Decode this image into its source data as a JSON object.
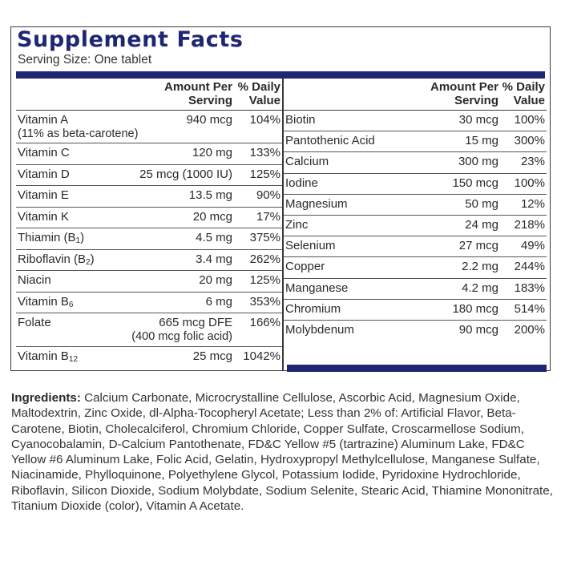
{
  "title": "Supplement Facts",
  "serving_size": "Serving Size: One tablet",
  "headers": {
    "amount_line1": "Amount Per",
    "amount_line2": "Serving",
    "dv_line1": "% Daily",
    "dv_line2": "Value"
  },
  "left_rows": [
    {
      "name": "Vitamin A",
      "sub": "(11% as beta-carotene)",
      "amount": "940 mcg",
      "amount2": "",
      "dv": "104%"
    },
    {
      "name": "Vitamin C",
      "sub": "",
      "amount": "120 mg",
      "amount2": "",
      "dv": "133%"
    },
    {
      "name": "Vitamin D",
      "sub": "",
      "amount": "25 mcg (1000 IU)",
      "amount2": "",
      "dv": "125%"
    },
    {
      "name": "Vitamin E",
      "sub": "",
      "amount": "13.5 mg",
      "amount2": "",
      "dv": "90%"
    },
    {
      "name": "Vitamin K",
      "sub": "",
      "amount": "20 mcg",
      "amount2": "",
      "dv": "17%"
    },
    {
      "name": "Thiamin (B",
      "subscript": "1",
      "suffix": ")",
      "sub": "",
      "amount": "4.5 mg",
      "amount2": "",
      "dv": "375%"
    },
    {
      "name": "Riboflavin (B",
      "subscript": "2",
      "suffix": ")",
      "sub": "",
      "amount": "3.4 mg",
      "amount2": "",
      "dv": "262%"
    },
    {
      "name": "Niacin",
      "sub": "",
      "amount": "20 mg",
      "amount2": "",
      "dv": "125%"
    },
    {
      "name": "Vitamin B",
      "subscript": "6",
      "suffix": "",
      "sub": "",
      "amount": "6 mg",
      "amount2": "",
      "dv": "353%"
    },
    {
      "name": "Folate",
      "sub": "",
      "amount": "665 mcg DFE",
      "amount2": "(400 mcg folic acid)",
      "dv": "166%"
    },
    {
      "name": "Vitamin B",
      "subscript": "12",
      "suffix": "",
      "sub": "",
      "amount": "25 mcg",
      "amount2": "",
      "dv": "1042%"
    }
  ],
  "right_rows": [
    {
      "name": "Biotin",
      "amount": "30 mcg",
      "dv": "100%"
    },
    {
      "name": "Pantothenic Acid",
      "amount": "15 mg",
      "dv": "300%"
    },
    {
      "name": "Calcium",
      "amount": "300 mg",
      "dv": "23%"
    },
    {
      "name": "Iodine",
      "amount": "150 mcg",
      "dv": "100%"
    },
    {
      "name": "Magnesium",
      "amount": "50 mg",
      "dv": "12%"
    },
    {
      "name": "Zinc",
      "amount": "24 mg",
      "dv": "218%"
    },
    {
      "name": "Selenium",
      "amount": "27 mcg",
      "dv": "49%"
    },
    {
      "name": "Copper",
      "amount": "2.2 mg",
      "dv": "244%"
    },
    {
      "name": "Manganese",
      "amount": "4.2 mg",
      "dv": "183%"
    },
    {
      "name": "Chromium",
      "amount": "180 mcg",
      "dv": "514%"
    },
    {
      "name": "Molybdenum",
      "amount": "90 mcg",
      "dv": "200%"
    }
  ],
  "ingredients_label": "Ingredients:",
  "ingredients_text": " Calcium Carbonate, Microcrystalline Cellulose, Ascorbic Acid, Magnesium Oxide, Maltodextrin, Zinc Oxide, dl-Alpha-Tocopheryl Acetate; Less than 2% of: Artificial Flavor, Beta-Carotene, Biotin, Cholecalciferol, Chromium Chloride, Copper Sulfate, Croscarmellose Sodium, Cyanocobalamin, D-Calcium Pantothenate, FD&C Yellow #5 (tartrazine) Aluminum Lake, FD&C Yellow #6 Aluminum Lake, Folic Acid, Gelatin, Hydroxypropyl Methylcellulose, Manganese Sulfate, Niacinamide, Phylloquinone, Polyethylene Glycol, Potassium Iodide, Pyridoxine Hydrochloride, Riboflavin, Silicon Dioxide, Sodium Molybdate, Sodium Selenite, Stearic Acid, Thiamine Mononitrate, Titanium Dioxide (color), Vitamin A Acetate.",
  "colors": {
    "accent": "#1f2673",
    "text": "#2a2a2a"
  }
}
